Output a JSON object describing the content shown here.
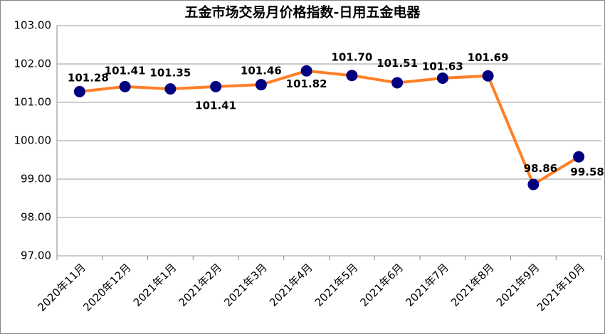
{
  "chart_data": {
    "type": "line",
    "title": "五金市场交易月价格指数-日用五金电器",
    "categories": [
      "2020年11月",
      "2020年12月",
      "2021年1月",
      "2021年2月",
      "2021年3月",
      "2021年4月",
      "2021年5月",
      "2021年6月",
      "2021年7月",
      "2021年8月",
      "2021年9月",
      "2021年10月"
    ],
    "series": [
      {
        "color": "#ff7f27",
        "marker_color": "#000080",
        "values": [
          101.28,
          101.41,
          101.35,
          101.41,
          101.46,
          101.82,
          101.7,
          101.51,
          101.63,
          101.69,
          98.86,
          99.58
        ],
        "value_labels": [
          "101.28",
          "101.41",
          "101.35",
          "101.41",
          "101.46",
          "101.82",
          "101.70",
          "101.51",
          "101.63",
          "101.69",
          "98.86",
          "99.58"
        ]
      }
    ],
    "ylim": [
      97,
      103
    ],
    "yticks": [
      {
        "value": 97,
        "label": "97.00"
      },
      {
        "value": 98,
        "label": "98.00"
      },
      {
        "value": 99,
        "label": "99.00"
      },
      {
        "value": 100,
        "label": "100.00"
      },
      {
        "value": 101,
        "label": "101.00"
      },
      {
        "value": 102,
        "label": "102.00"
      },
      {
        "value": 103,
        "label": "103.00"
      }
    ],
    "grid": true
  }
}
